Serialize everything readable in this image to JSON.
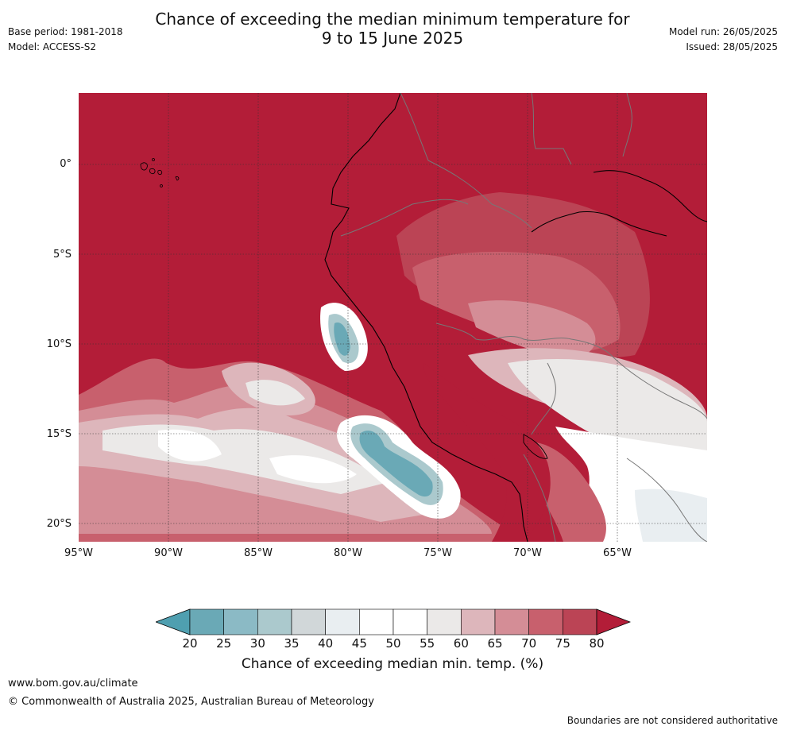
{
  "title_line1": "Chance of exceeding the median minimum temperature for",
  "title_line2": "9 to 15 June 2025",
  "base_period": "Base period: 1981-2018",
  "model": "Model: ACCESS-S2",
  "model_run": "Model run: 26/05/2025",
  "issued": "Issued: 28/05/2025",
  "map": {
    "lat_labels": [
      "0°",
      "5°S",
      "10°S",
      "15°S",
      "20°S"
    ],
    "lon_labels": [
      "95°W",
      "90°W",
      "85°W",
      "80°W",
      "75°W",
      "70°W",
      "65°W"
    ]
  },
  "colorbar": {
    "ticks": [
      "20",
      "25",
      "30",
      "35",
      "40",
      "45",
      "50",
      "55",
      "60",
      "65",
      "70",
      "75",
      "80"
    ],
    "colors": [
      "#6aa9b6",
      "#8bbac5",
      "#abc9cd",
      "#d1d7d9",
      "#e9eef1",
      "#ffffff",
      "#ffffff",
      "#ebe9e8",
      "#ddb6bb",
      "#d48d96",
      "#c8606d",
      "#bb4455"
    ],
    "under_color": "#4f9fb0",
    "over_color": "#b31d38",
    "label": "Chance of exceeding median min. temp. (%)"
  },
  "footer": {
    "url": "www.bom.gov.au/climate",
    "copyright": "© Commonwealth of Australia 2025, Australian Bureau of Meteorology",
    "disclaimer": "Boundaries are not considered authoritative"
  }
}
